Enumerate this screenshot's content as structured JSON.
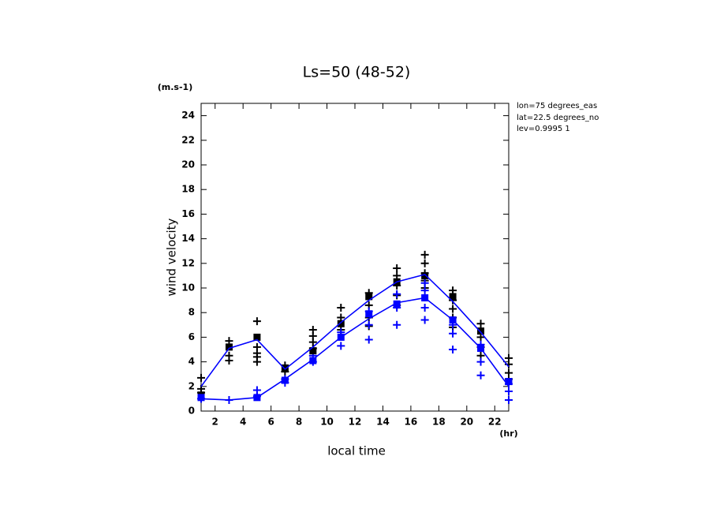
{
  "chart_data": {
    "type": "line",
    "title": "Ls=50 (48-52)",
    "y_unit": "(m.s-1)",
    "y_label": "wind velocity",
    "x_label": "local time",
    "x_unit": "(hr)",
    "annotations": [
      "lon=75 degrees_eas",
      "lat=22.5 degrees_no",
      "lev=0.9995 1"
    ],
    "xlim": [
      1,
      23
    ],
    "xticks": [
      2,
      4,
      6,
      8,
      10,
      12,
      14,
      16,
      18,
      20,
      22
    ],
    "ylim": [
      0,
      25
    ],
    "yticks": [
      0,
      2,
      4,
      6,
      8,
      10,
      12,
      14,
      16,
      18,
      20,
      22,
      24
    ],
    "grid": false,
    "series": [
      {
        "marker": "plus",
        "color": "#000000",
        "x": [
          1,
          1,
          1,
          3,
          3,
          3,
          5,
          5,
          5,
          5,
          5,
          7,
          7,
          9,
          9,
          9,
          9,
          11,
          11,
          11,
          13,
          13,
          13,
          13,
          15,
          15,
          15,
          15,
          15,
          17,
          17,
          17,
          17,
          17,
          19,
          19,
          19,
          19,
          19,
          21,
          21,
          21,
          21,
          23,
          23,
          23,
          23
        ],
        "values": [
          2.7,
          1.8,
          1.5,
          5.7,
          4.5,
          4.1,
          7.3,
          5.2,
          4.7,
          4.4,
          4.0,
          3.7,
          3.2,
          6.6,
          6.1,
          5.6,
          5.1,
          8.4,
          7.6,
          6.6,
          9.6,
          8.6,
          7.6,
          6.9,
          11.6,
          11.0,
          10.2,
          9.4,
          8.6,
          12.7,
          12.0,
          11.2,
          10.6,
          10.0,
          9.8,
          9.0,
          8.3,
          7.6,
          6.8,
          7.1,
          6.0,
          5.2,
          4.5,
          4.3,
          3.8,
          3.1,
          2.6
        ]
      },
      {
        "marker": "plus",
        "color": "#0000ff",
        "x": [
          1,
          3,
          5,
          5,
          7,
          7,
          9,
          9,
          11,
          11,
          13,
          13,
          13,
          15,
          15,
          15,
          17,
          17,
          17,
          17,
          19,
          19,
          19,
          21,
          21,
          21,
          23,
          23,
          23
        ],
        "values": [
          1.0,
          0.9,
          1.7,
          1.2,
          2.3,
          2.6,
          4.5,
          4.0,
          5.3,
          6.4,
          5.8,
          7.0,
          8.1,
          7.0,
          8.4,
          9.5,
          7.4,
          8.4,
          9.8,
          10.4,
          5.0,
          6.3,
          7.0,
          2.9,
          4.0,
          5.4,
          0.9,
          1.6,
          2.2
        ]
      },
      {
        "marker": "square",
        "color": "#000000",
        "x": [
          1,
          3,
          5,
          7,
          9,
          11,
          13,
          15,
          17,
          19,
          21,
          23
        ],
        "values": [
          1.3,
          5.2,
          6.0,
          3.5,
          4.9,
          7.1,
          9.3,
          10.5,
          11.0,
          9.3,
          6.5,
          2.4
        ]
      },
      {
        "marker": "square",
        "color": "#0000ff",
        "x": [
          1,
          5,
          7,
          9,
          11,
          13,
          15,
          17,
          19,
          21,
          23
        ],
        "values": [
          1.1,
          1.1,
          2.5,
          4.1,
          6.0,
          7.9,
          8.7,
          9.2,
          7.4,
          5.1,
          2.4
        ]
      },
      {
        "marker": "line",
        "color": "#0000ff",
        "x": [
          1,
          3,
          5,
          7,
          9,
          11,
          13,
          15,
          17,
          19,
          21,
          23
        ],
        "values": [
          2.0,
          5.1,
          5.8,
          3.4,
          5.2,
          7.2,
          9.0,
          10.5,
          11.1,
          8.9,
          6.4,
          3.6
        ]
      },
      {
        "marker": "line",
        "color": "#0000ff",
        "x": [
          1,
          3,
          5,
          7,
          9,
          11,
          13,
          15,
          17,
          19,
          21,
          23
        ],
        "values": [
          1.0,
          0.9,
          1.1,
          2.6,
          4.2,
          6.0,
          7.5,
          8.8,
          9.2,
          7.4,
          5.1,
          2.0
        ]
      }
    ]
  }
}
